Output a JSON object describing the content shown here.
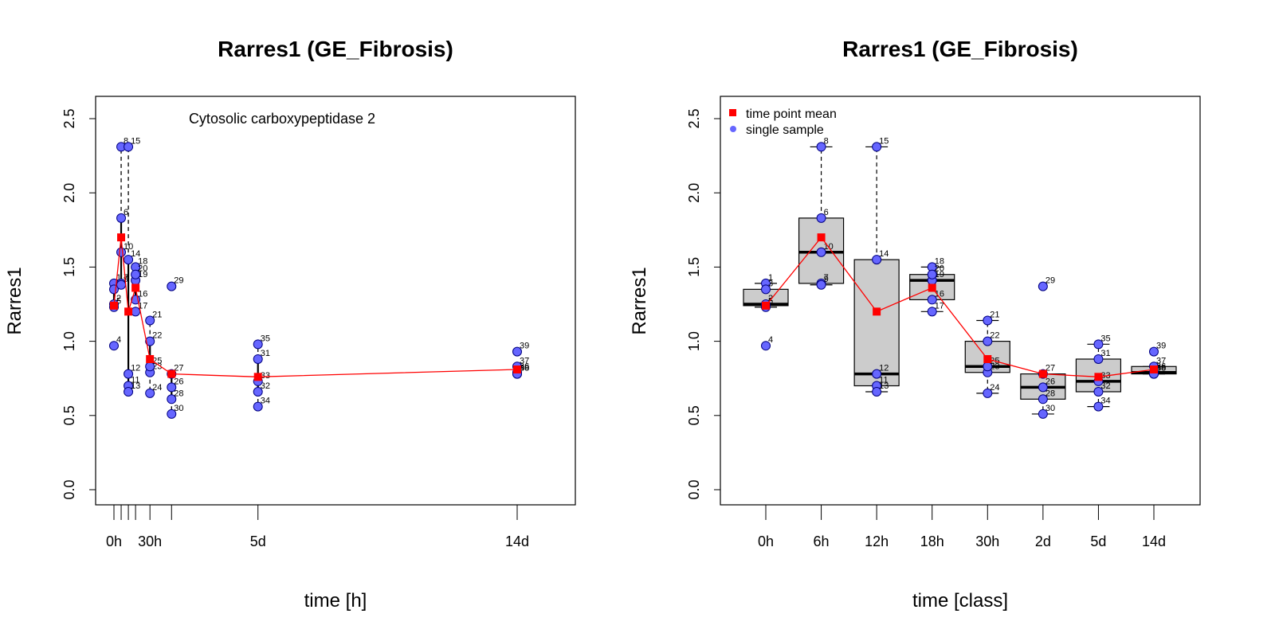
{
  "chart_data": [
    {
      "type": "scatter",
      "title": "Rarres1 (GE_Fibrosis)",
      "annotation": "Cytosolic carboxypeptidase 2",
      "xlabel": "time [h]",
      "ylabel": "Rarres1",
      "ylim": [
        0,
        2.5
      ],
      "xlim": [
        0,
        336
      ],
      "yticks": [
        "0.0",
        "0.5",
        "1.0",
        "1.5",
        "2.0",
        "2.5"
      ],
      "x_tick_positions": [
        0,
        6,
        12,
        18,
        30,
        48,
        120,
        336
      ],
      "x_tick_labels": [
        {
          "x": 0,
          "label": "0h"
        },
        {
          "x": 30,
          "label": "30h"
        },
        {
          "x": 120,
          "label": "5d"
        },
        {
          "x": 336,
          "label": "14d"
        }
      ],
      "mean_line": {
        "x": [
          0,
          6,
          12,
          18,
          30,
          48,
          120,
          336
        ],
        "y": [
          1.24,
          1.7,
          1.2,
          1.36,
          0.88,
          0.78,
          0.76,
          0.81
        ]
      },
      "samples": [
        {
          "id": "1",
          "x": 0,
          "y": 1.39
        },
        {
          "id": "2",
          "x": 0,
          "y": 1.25
        },
        {
          "id": "3",
          "x": 0,
          "y": 1.35
        },
        {
          "id": "4",
          "x": 0,
          "y": 0.97
        },
        {
          "id": "5",
          "x": 0,
          "y": 1.23
        },
        {
          "id": "6",
          "x": 6,
          "y": 1.83
        },
        {
          "id": "7",
          "x": 6,
          "y": 1.39
        },
        {
          "id": "8",
          "x": 6,
          "y": 2.31
        },
        {
          "id": "9",
          "x": 6,
          "y": 1.38
        },
        {
          "id": "10",
          "x": 6,
          "y": 1.6
        },
        {
          "id": "11",
          "x": 12,
          "y": 0.7
        },
        {
          "id": "12",
          "x": 12,
          "y": 0.78
        },
        {
          "id": "13",
          "x": 12,
          "y": 0.66
        },
        {
          "id": "14",
          "x": 12,
          "y": 1.55
        },
        {
          "id": "15",
          "x": 12,
          "y": 2.31
        },
        {
          "id": "16",
          "x": 18,
          "y": 1.28
        },
        {
          "id": "17",
          "x": 18,
          "y": 1.2
        },
        {
          "id": "18",
          "x": 18,
          "y": 1.5
        },
        {
          "id": "19",
          "x": 18,
          "y": 1.41
        },
        {
          "id": "20",
          "x": 18,
          "y": 1.45
        },
        {
          "id": "21",
          "x": 30,
          "y": 1.14
        },
        {
          "id": "22",
          "x": 30,
          "y": 1.0
        },
        {
          "id": "23",
          "x": 30,
          "y": 0.79
        },
        {
          "id": "24",
          "x": 30,
          "y": 0.65
        },
        {
          "id": "25",
          "x": 30,
          "y": 0.83
        },
        {
          "id": "26",
          "x": 48,
          "y": 0.69
        },
        {
          "id": "27",
          "x": 48,
          "y": 0.78
        },
        {
          "id": "28",
          "x": 48,
          "y": 0.61
        },
        {
          "id": "29",
          "x": 48,
          "y": 1.37
        },
        {
          "id": "30",
          "x": 48,
          "y": 0.51
        },
        {
          "id": "31",
          "x": 120,
          "y": 0.88
        },
        {
          "id": "32",
          "x": 120,
          "y": 0.66
        },
        {
          "id": "33",
          "x": 120,
          "y": 0.73
        },
        {
          "id": "34",
          "x": 120,
          "y": 0.56
        },
        {
          "id": "35",
          "x": 120,
          "y": 0.98
        },
        {
          "id": "36",
          "x": 336,
          "y": 0.79
        },
        {
          "id": "37",
          "x": 336,
          "y": 0.83
        },
        {
          "id": "38",
          "x": 336,
          "y": 0.78
        },
        {
          "id": "39",
          "x": 336,
          "y": 0.93
        },
        {
          "id": "40",
          "x": 336,
          "y": 0.78
        }
      ]
    },
    {
      "type": "box",
      "title": "Rarres1 (GE_Fibrosis)",
      "xlabel": "time [class]",
      "ylabel": "Rarres1",
      "ylim": [
        0,
        2.5
      ],
      "yticks": [
        "0.0",
        "0.5",
        "1.0",
        "1.5",
        "2.0",
        "2.5"
      ],
      "categories": [
        "0h",
        "6h",
        "12h",
        "18h",
        "30h",
        "2d",
        "5d",
        "14d"
      ],
      "legend": {
        "position": "top-left",
        "entries": [
          {
            "label": "time point mean",
            "symbol": "square",
            "color": "#ff0000"
          },
          {
            "label": "single sample",
            "symbol": "circle",
            "color": "#6666ff"
          }
        ]
      },
      "boxes": [
        {
          "category": "0h",
          "min": 1.23,
          "q1": 1.24,
          "median": 1.25,
          "q3": 1.35,
          "max": 1.39
        },
        {
          "category": "6h",
          "min": 1.38,
          "q1": 1.39,
          "median": 1.6,
          "q3": 1.83,
          "max": 2.31
        },
        {
          "category": "12h",
          "min": 0.66,
          "q1": 0.7,
          "median": 0.78,
          "q3": 1.55,
          "max": 2.31
        },
        {
          "category": "18h",
          "min": 1.2,
          "q1": 1.28,
          "median": 1.41,
          "q3": 1.45,
          "max": 1.5
        },
        {
          "category": "30h",
          "min": 0.65,
          "q1": 0.79,
          "median": 0.83,
          "q3": 1.0,
          "max": 1.14
        },
        {
          "category": "2d",
          "min": 0.51,
          "q1": 0.61,
          "median": 0.69,
          "q3": 0.78,
          "max": 0.78
        },
        {
          "category": "5d",
          "min": 0.56,
          "q1": 0.66,
          "median": 0.73,
          "q3": 0.88,
          "max": 0.98
        },
        {
          "category": "14d",
          "min": 0.78,
          "q1": 0.78,
          "median": 0.79,
          "q3": 0.83,
          "max": 0.83
        }
      ],
      "mean_line": {
        "categories": [
          "0h",
          "6h",
          "12h",
          "18h",
          "30h",
          "2d",
          "5d",
          "14d"
        ],
        "y": [
          1.24,
          1.7,
          1.2,
          1.36,
          0.88,
          0.78,
          0.76,
          0.81
        ]
      }
    }
  ],
  "colors": {
    "mean": "#ff0000",
    "sample_fill": "#6666ff",
    "sample_stroke": "#000080",
    "box_fill": "#cccccc"
  }
}
